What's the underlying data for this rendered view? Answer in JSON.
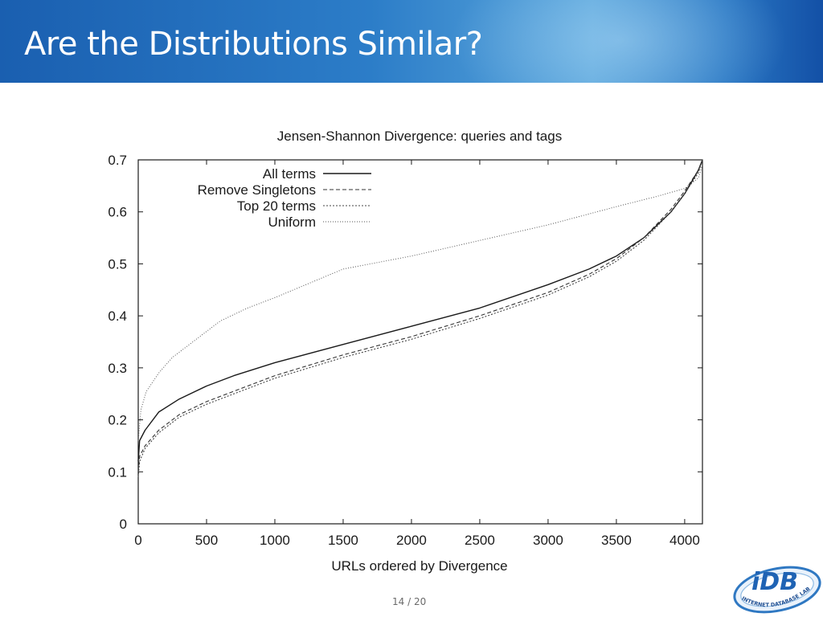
{
  "slide": {
    "title": "Are the Distributions Similar?",
    "page_number": "14 / 20"
  },
  "logo": {
    "mark": "iDB",
    "ring_text": "INTERNET DATABASE LAB"
  },
  "chart_data": {
    "type": "line",
    "title": "Jensen-Shannon Divergence: queries and tags",
    "xlabel": "URLs ordered by Divergence",
    "ylabel": "",
    "xlim": [
      0,
      4130
    ],
    "ylim": [
      0,
      0.7
    ],
    "x_ticks": [
      0,
      500,
      1000,
      1500,
      2000,
      2500,
      3000,
      3500,
      4000
    ],
    "y_ticks": [
      0,
      0.1,
      0.2,
      0.3,
      0.4,
      0.5,
      0.6,
      0.7
    ],
    "grid": false,
    "legend_position": "top-left",
    "series": [
      {
        "name": "All terms",
        "style": "solid",
        "points": [
          [
            0,
            0.12
          ],
          [
            10,
            0.16
          ],
          [
            50,
            0.18
          ],
          [
            150,
            0.215
          ],
          [
            300,
            0.24
          ],
          [
            500,
            0.265
          ],
          [
            700,
            0.285
          ],
          [
            1000,
            0.31
          ],
          [
            1500,
            0.345
          ],
          [
            2000,
            0.38
          ],
          [
            2500,
            0.415
          ],
          [
            3000,
            0.46
          ],
          [
            3300,
            0.49
          ],
          [
            3500,
            0.515
          ],
          [
            3700,
            0.55
          ],
          [
            3900,
            0.6
          ],
          [
            4000,
            0.635
          ],
          [
            4100,
            0.68
          ],
          [
            4130,
            0.7
          ]
        ]
      },
      {
        "name": "Remove Singletons",
        "style": "dashed",
        "points": [
          [
            0,
            0.1
          ],
          [
            10,
            0.13
          ],
          [
            50,
            0.15
          ],
          [
            150,
            0.18
          ],
          [
            300,
            0.21
          ],
          [
            500,
            0.235
          ],
          [
            700,
            0.255
          ],
          [
            1000,
            0.285
          ],
          [
            1500,
            0.325
          ],
          [
            2000,
            0.36
          ],
          [
            2500,
            0.4
          ],
          [
            3000,
            0.445
          ],
          [
            3300,
            0.48
          ],
          [
            3500,
            0.51
          ],
          [
            3700,
            0.55
          ],
          [
            3900,
            0.605
          ],
          [
            4000,
            0.64
          ],
          [
            4100,
            0.68
          ],
          [
            4130,
            0.7
          ]
        ]
      },
      {
        "name": "Top 20 terms",
        "style": "dotted",
        "points": [
          [
            0,
            0.09
          ],
          [
            10,
            0.12
          ],
          [
            50,
            0.145
          ],
          [
            150,
            0.175
          ],
          [
            300,
            0.205
          ],
          [
            500,
            0.23
          ],
          [
            700,
            0.25
          ],
          [
            1000,
            0.28
          ],
          [
            1500,
            0.32
          ],
          [
            2000,
            0.355
          ],
          [
            2500,
            0.395
          ],
          [
            3000,
            0.44
          ],
          [
            3300,
            0.475
          ],
          [
            3500,
            0.505
          ],
          [
            3700,
            0.545
          ],
          [
            3900,
            0.6
          ],
          [
            4000,
            0.635
          ],
          [
            4100,
            0.675
          ],
          [
            4130,
            0.7
          ]
        ]
      },
      {
        "name": "Uniform",
        "style": "fine-dotted",
        "points": [
          [
            0,
            0.16
          ],
          [
            20,
            0.22
          ],
          [
            60,
            0.255
          ],
          [
            150,
            0.29
          ],
          [
            250,
            0.32
          ],
          [
            400,
            0.35
          ],
          [
            600,
            0.39
          ],
          [
            800,
            0.415
          ],
          [
            1000,
            0.435
          ],
          [
            1500,
            0.49
          ],
          [
            2000,
            0.515
          ],
          [
            2500,
            0.545
          ],
          [
            3000,
            0.575
          ],
          [
            3500,
            0.61
          ],
          [
            3800,
            0.63
          ],
          [
            4000,
            0.645
          ],
          [
            4100,
            0.665
          ],
          [
            4130,
            0.69
          ]
        ]
      }
    ]
  }
}
